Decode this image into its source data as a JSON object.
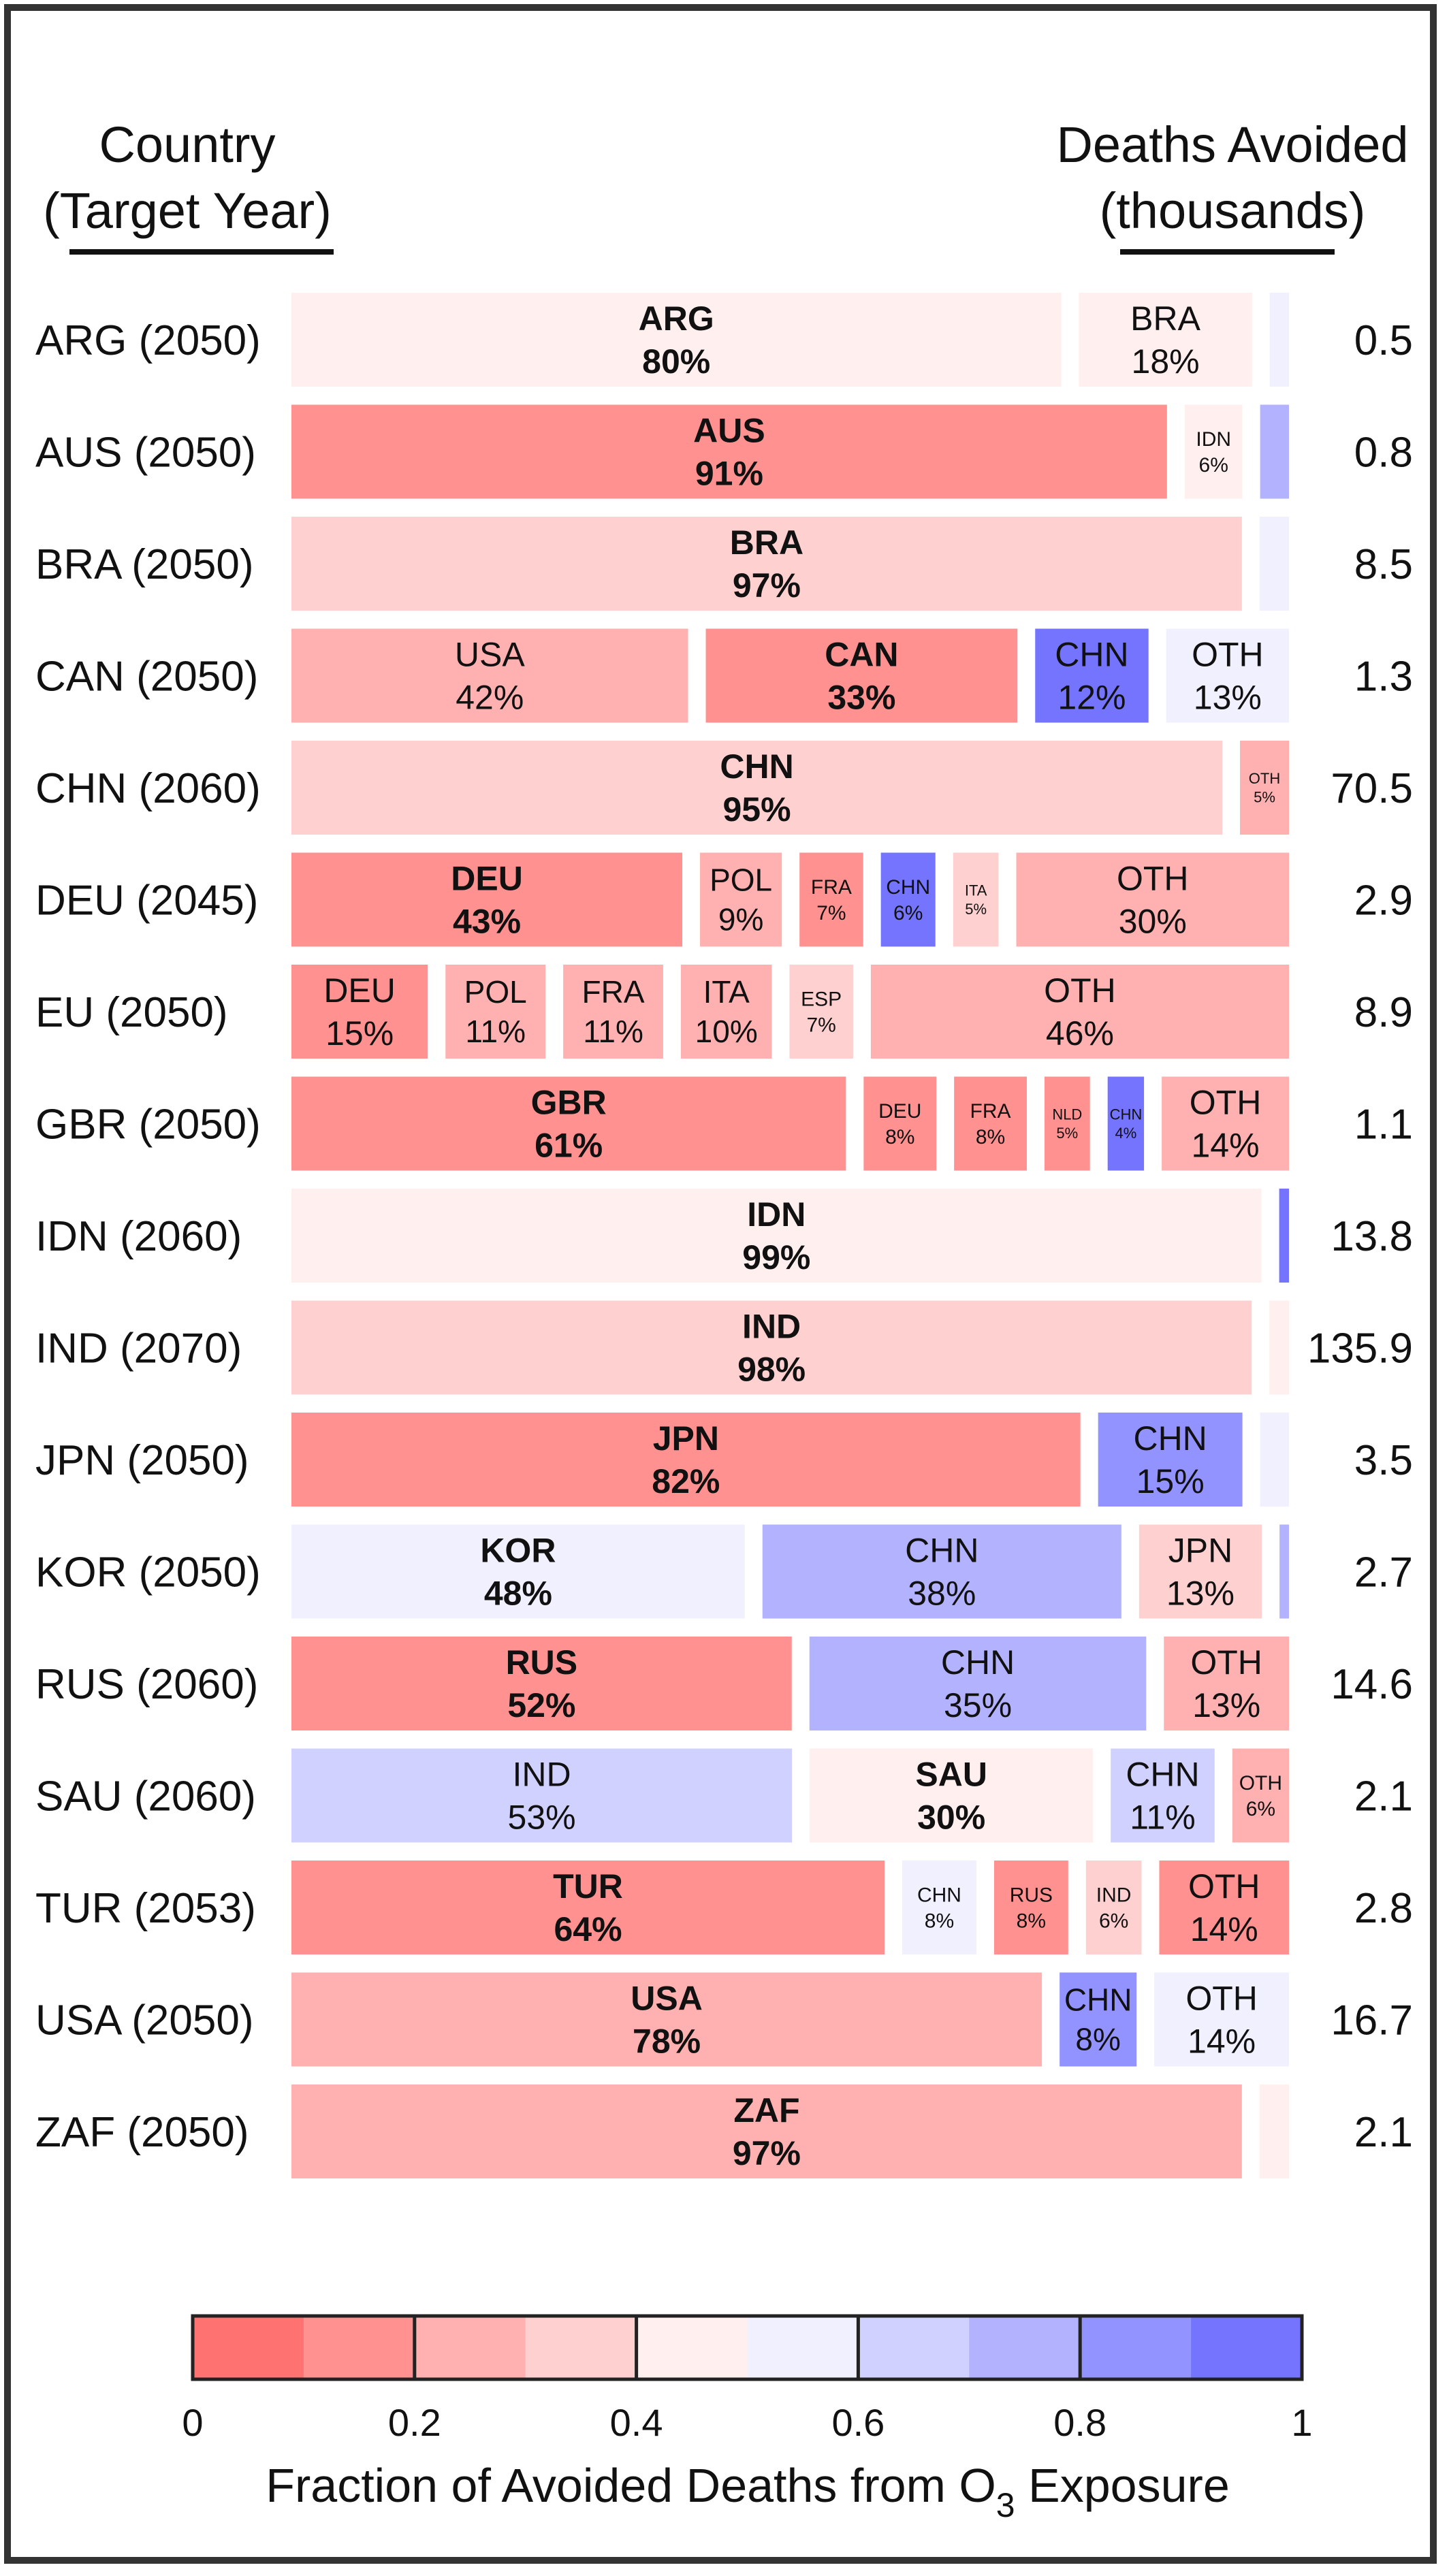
{
  "chart_data": {
    "type": "bar",
    "stacking": "horizontal-100%",
    "header_left": [
      "Country",
      "(Target Year)"
    ],
    "header_right": [
      "Deaths Avoided",
      "(thousands)"
    ],
    "rows": [
      {
        "label": "ARG (2050)",
        "deaths": "0.5",
        "segments": [
          {
            "name": "ARG",
            "pct": 80,
            "o3": 0.4,
            "bold": true
          },
          {
            "name": "BRA",
            "pct": 18,
            "o3": 0.41
          },
          {
            "name": "",
            "pct": 2,
            "o3": 0.56
          }
        ]
      },
      {
        "label": "AUS (2050)",
        "deaths": "0.8",
        "segments": [
          {
            "name": "AUS",
            "pct": 91,
            "o3": 0.1,
            "bold": true
          },
          {
            "name": "IDN",
            "pct": 6,
            "o3": 0.42
          },
          {
            "name": "",
            "pct": 3,
            "o3": 0.7
          }
        ]
      },
      {
        "label": "BRA (2050)",
        "deaths": "8.5",
        "segments": [
          {
            "name": "BRA",
            "pct": 97,
            "o3": 0.3,
            "bold": true
          },
          {
            "name": "",
            "pct": 3,
            "o3": 0.54
          }
        ]
      },
      {
        "label": "CAN (2050)",
        "deaths": "1.3",
        "segments": [
          {
            "name": "USA",
            "pct": 42,
            "o3": 0.2
          },
          {
            "name": "CAN",
            "pct": 33,
            "o3": 0.19,
            "bold": true
          },
          {
            "name": "CHN",
            "pct": 12,
            "o3": 0.95
          },
          {
            "name": "OTH",
            "pct": 13,
            "o3": 0.57
          }
        ]
      },
      {
        "label": "CHN (2060)",
        "deaths": "70.5",
        "segments": [
          {
            "name": "CHN",
            "pct": 95,
            "o3": 0.31,
            "bold": true
          },
          {
            "name": "OTH",
            "pct": 5,
            "o3": 0.2
          }
        ]
      },
      {
        "label": "DEU (2045)",
        "deaths": "2.9",
        "segments": [
          {
            "name": "DEU",
            "pct": 43,
            "o3": 0.18,
            "bold": true
          },
          {
            "name": "POL",
            "pct": 9,
            "o3": 0.21
          },
          {
            "name": "FRA",
            "pct": 7,
            "o3": 0.16
          },
          {
            "name": "CHN",
            "pct": 6,
            "o3": 0.96
          },
          {
            "name": "ITA",
            "pct": 5,
            "o3": 0.36
          },
          {
            "name": "OTH",
            "pct": 30,
            "o3": 0.21
          }
        ]
      },
      {
        "label": "EU (2050)",
        "deaths": "8.9",
        "segments": [
          {
            "name": "DEU",
            "pct": 15,
            "o3": 0.19
          },
          {
            "name": "POL",
            "pct": 11,
            "o3": 0.2
          },
          {
            "name": "FRA",
            "pct": 11,
            "o3": 0.21
          },
          {
            "name": "ITA",
            "pct": 10,
            "o3": 0.28
          },
          {
            "name": "ESP",
            "pct": 7,
            "o3": 0.39
          },
          {
            "name": "OTH",
            "pct": 46,
            "o3": 0.23
          }
        ]
      },
      {
        "label": "GBR (2050)",
        "deaths": "1.1",
        "segments": [
          {
            "name": "GBR",
            "pct": 61,
            "o3": 0.1,
            "bold": true
          },
          {
            "name": "DEU",
            "pct": 8,
            "o3": 0.19
          },
          {
            "name": "FRA",
            "pct": 8,
            "o3": 0.16
          },
          {
            "name": "NLD",
            "pct": 5,
            "o3": 0.17
          },
          {
            "name": "CHN",
            "pct": 4,
            "o3": 0.93
          },
          {
            "name": "OTH",
            "pct": 14,
            "o3": 0.22
          }
        ]
      },
      {
        "label": "IDN (2060)",
        "deaths": "13.8",
        "segments": [
          {
            "name": "IDN",
            "pct": 99,
            "o3": 0.4,
            "bold": true
          },
          {
            "name": "",
            "pct": 1,
            "o3": 0.9
          }
        ]
      },
      {
        "label": "IND (2070)",
        "deaths": "135.9",
        "segments": [
          {
            "name": "IND",
            "pct": 98,
            "o3": 0.33,
            "bold": true
          },
          {
            "name": "",
            "pct": 2,
            "o3": 0.4
          }
        ]
      },
      {
        "label": "JPN (2050)",
        "deaths": "3.5",
        "segments": [
          {
            "name": "JPN",
            "pct": 82,
            "o3": 0.18,
            "bold": true
          },
          {
            "name": "CHN",
            "pct": 15,
            "o3": 0.8
          },
          {
            "name": "",
            "pct": 3,
            "o3": 0.57
          }
        ]
      },
      {
        "label": "KOR (2050)",
        "deaths": "2.7",
        "segments": [
          {
            "name": "KOR",
            "pct": 48,
            "o3": 0.58,
            "bold": true
          },
          {
            "name": "CHN",
            "pct": 38,
            "o3": 0.78
          },
          {
            "name": "JPN",
            "pct": 13,
            "o3": 0.3
          },
          {
            "name": "",
            "pct": 1,
            "o3": 0.7
          }
        ]
      },
      {
        "label": "RUS (2060)",
        "deaths": "14.6",
        "segments": [
          {
            "name": "RUS",
            "pct": 52,
            "o3": 0.1,
            "bold": true
          },
          {
            "name": "CHN",
            "pct": 35,
            "o3": 0.7
          },
          {
            "name": "OTH",
            "pct": 13,
            "o3": 0.24
          }
        ]
      },
      {
        "label": "SAU (2060)",
        "deaths": "2.1",
        "segments": [
          {
            "name": "IND",
            "pct": 53,
            "o3": 0.68
          },
          {
            "name": "SAU",
            "pct": 30,
            "o3": 0.4,
            "bold": true
          },
          {
            "name": "CHN",
            "pct": 11,
            "o3": 0.68
          },
          {
            "name": "OTH",
            "pct": 6,
            "o3": 0.22
          }
        ]
      },
      {
        "label": "TUR (2053)",
        "deaths": "2.8",
        "segments": [
          {
            "name": "TUR",
            "pct": 64,
            "o3": 0.16,
            "bold": true
          },
          {
            "name": "CHN",
            "pct": 8,
            "o3": 0.53
          },
          {
            "name": "RUS",
            "pct": 8,
            "o3": 0.17
          },
          {
            "name": "IND",
            "pct": 6,
            "o3": 0.34
          },
          {
            "name": "OTH",
            "pct": 14,
            "o3": 0.11
          }
        ]
      },
      {
        "label": "USA (2050)",
        "deaths": "16.7",
        "segments": [
          {
            "name": "USA",
            "pct": 78,
            "o3": 0.2,
            "bold": true
          },
          {
            "name": "CHN",
            "pct": 8,
            "o3": 0.88
          },
          {
            "name": "OTH",
            "pct": 14,
            "o3": 0.58
          }
        ]
      },
      {
        "label": "ZAF (2050)",
        "deaths": "2.1",
        "segments": [
          {
            "name": "ZAF",
            "pct": 97,
            "o3": 0.24,
            "bold": true
          },
          {
            "name": "",
            "pct": 3,
            "o3": 0.4
          }
        ]
      }
    ],
    "colorbar": {
      "ticks": [
        "0",
        "0.2",
        "0.4",
        "0.6",
        "0.8",
        "1"
      ],
      "label_main": "Fraction of Avoided Deaths from O",
      "label_sub": "3",
      "label_tail": " Exposure",
      "colors": {
        "low": "#ff6262",
        "mid": "#ffffff",
        "high": "#6464ff"
      },
      "bins": 10
    }
  }
}
